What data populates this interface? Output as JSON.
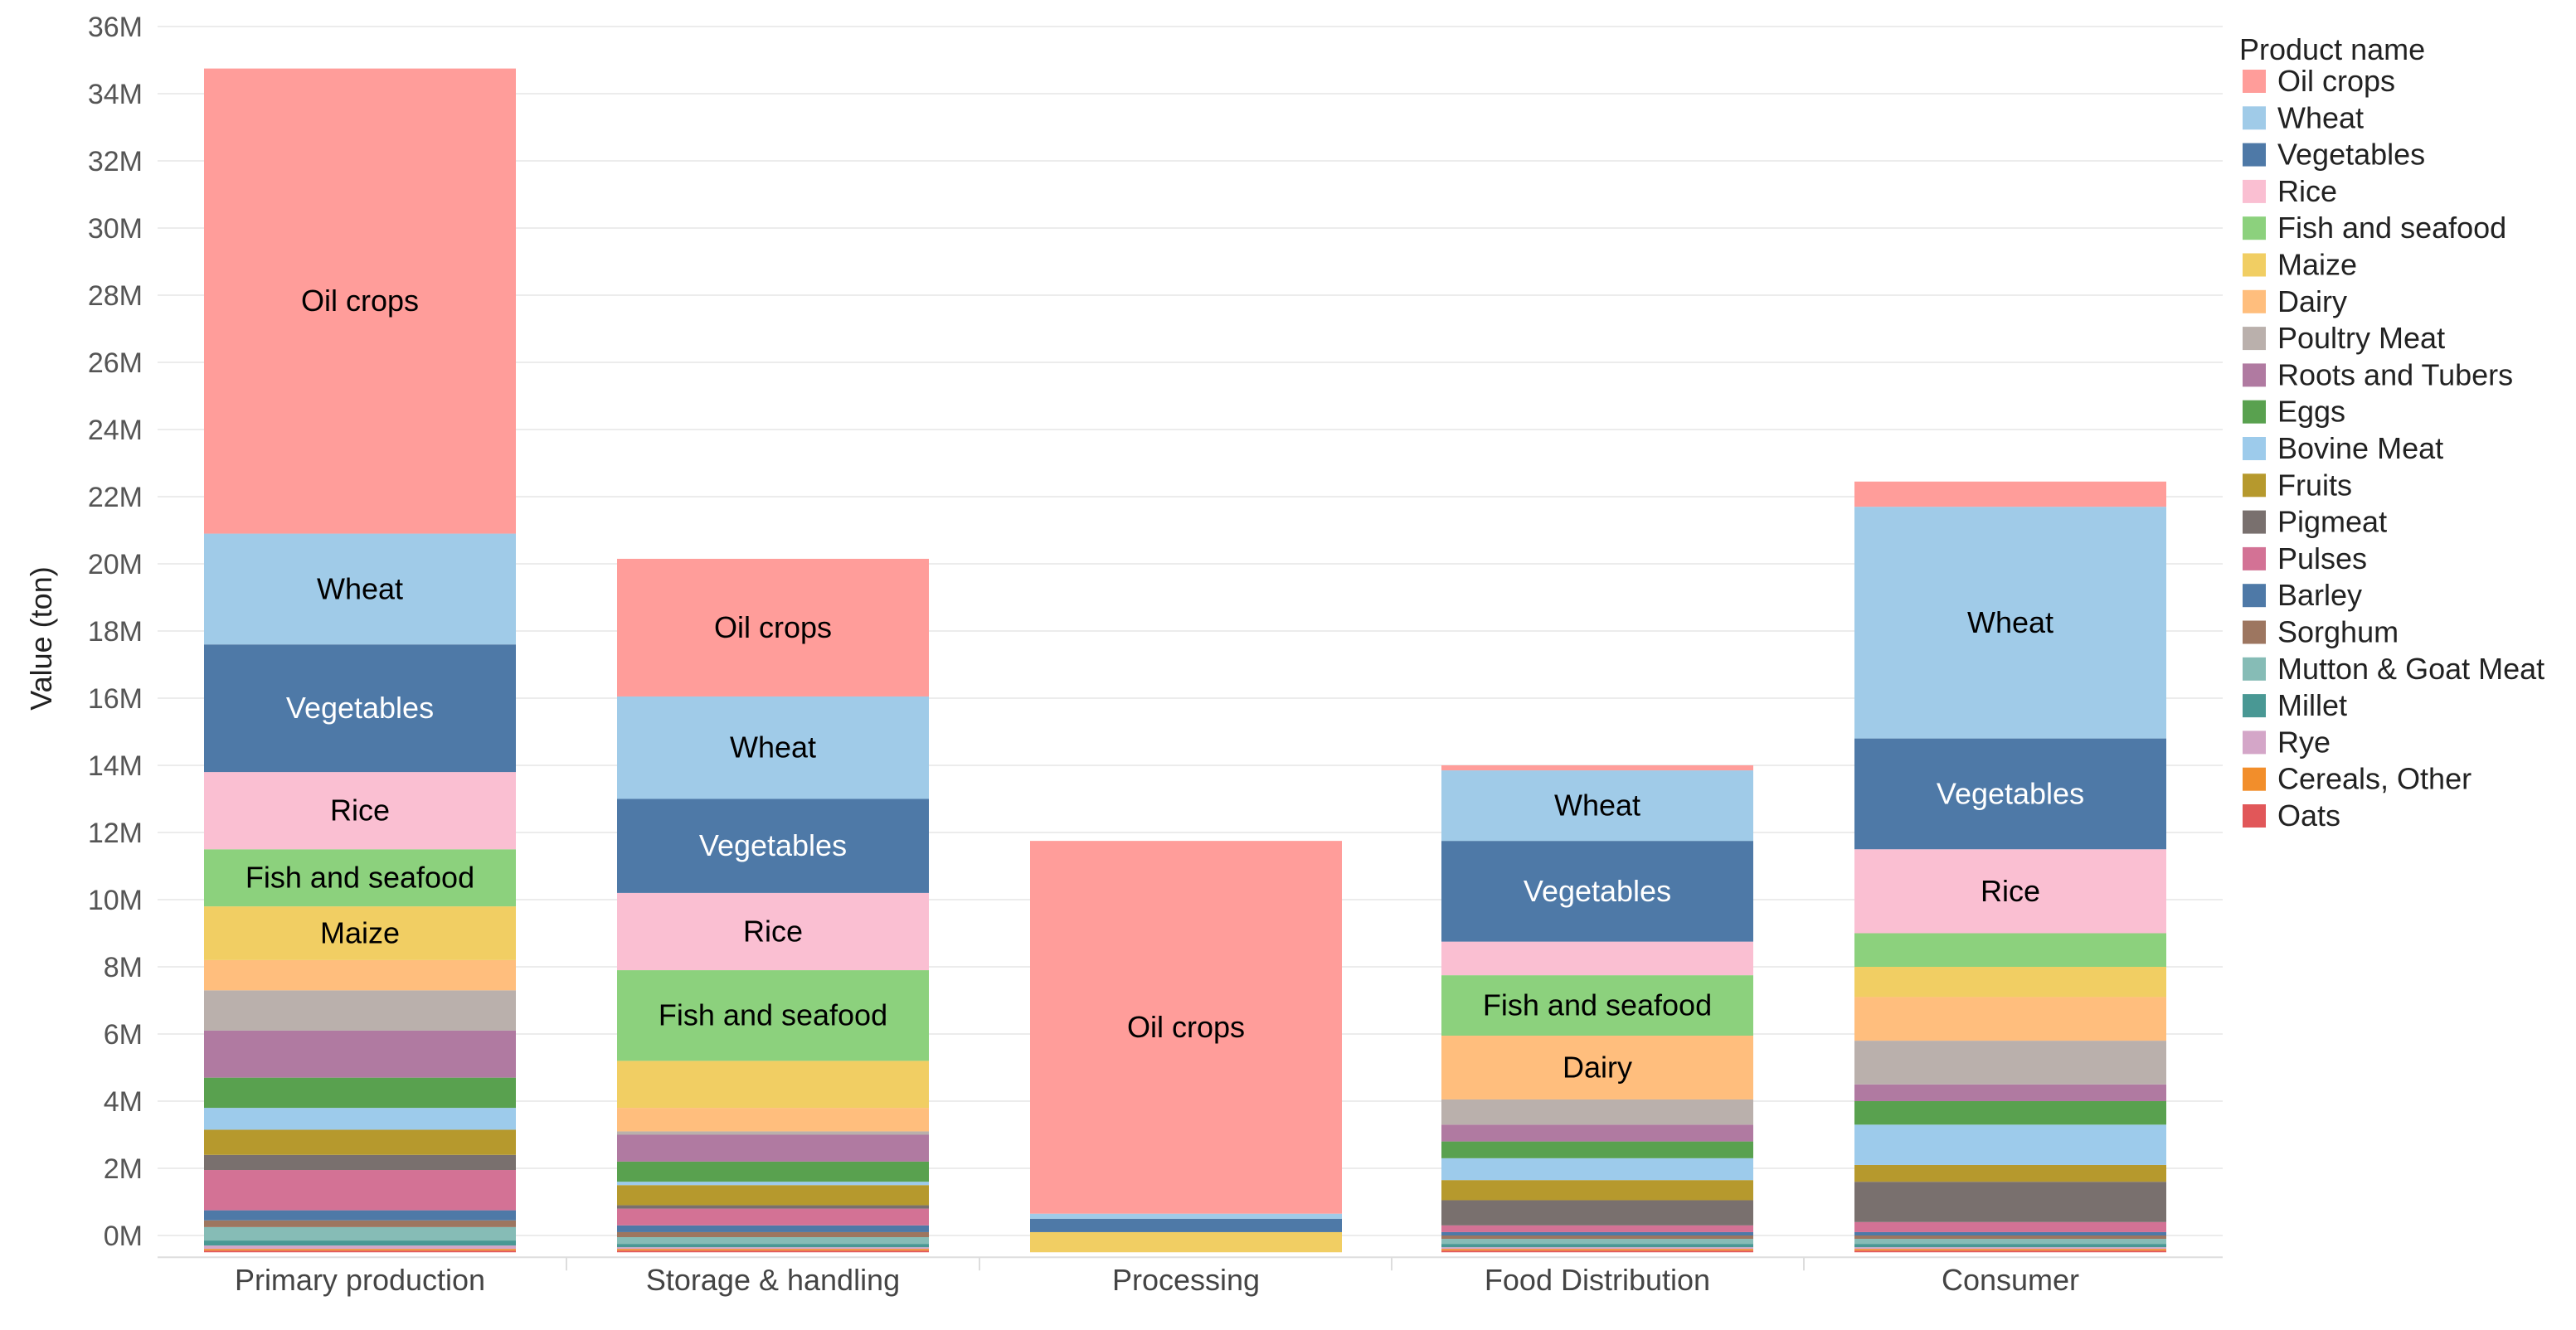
{
  "chart_data": {
    "type": "bar",
    "stacked": true,
    "ylabel": "Value (ton)",
    "xlabel": "",
    "ylim": [
      -500000,
      36000000
    ],
    "yticks": [
      0,
      2000000,
      4000000,
      6000000,
      8000000,
      10000000,
      12000000,
      14000000,
      16000000,
      18000000,
      20000000,
      22000000,
      24000000,
      26000000,
      28000000,
      30000000,
      32000000,
      34000000,
      36000000
    ],
    "ytick_labels": [
      "0M",
      "2M",
      "4M",
      "6M",
      "8M",
      "10M",
      "12M",
      "14M",
      "16M",
      "18M",
      "20M",
      "22M",
      "24M",
      "26M",
      "28M",
      "30M",
      "32M",
      "34M",
      "36M"
    ],
    "categories": [
      "Primary production",
      "Storage & handling",
      "Processing",
      "Food Distribution",
      "Consumer"
    ],
    "legend": {
      "title": "Product name",
      "position": "right",
      "items": [
        "Oil crops",
        "Wheat",
        "Vegetables",
        "Rice",
        "Fish and seafood",
        "Maize",
        "Dairy",
        "Poultry Meat",
        "Roots and Tubers",
        "Eggs",
        "Bovine Meat",
        "Fruits",
        "Pigmeat",
        "Pulses",
        "Barley",
        "Sorghum",
        "Mutton & Goat Meat",
        "Millet",
        "Rye",
        "Cereals, Other",
        "Oats"
      ]
    },
    "colors": {
      "Oil crops": "#ff9d9a",
      "Wheat": "#a0cbe8",
      "Vegetables": "#4e79a7",
      "Rice": "#fabfd2",
      "Fish and seafood": "#8cd17d",
      "Maize": "#f1ce63",
      "Dairy": "#ffbe7d",
      "Poultry Meat": "#bab0ac",
      "Roots and Tubers": "#b07aa1",
      "Eggs": "#59a14f",
      "Bovine Meat": "#9dcbeb",
      "Fruits": "#b6992d",
      "Pigmeat": "#79706e",
      "Pulses": "#d37295",
      "Barley": "#4e79a7",
      "Sorghum": "#9d7660",
      "Mutton & Goat Meat": "#86bcb6",
      "Millet": "#499894",
      "Rye": "#d4a6c8",
      "Cereals, Other": "#f28e2b",
      "Oats": "#e15759"
    },
    "stack_order": [
      "Oats",
      "Cereals, Other",
      "Rye",
      "Millet",
      "Mutton & Goat Meat",
      "Sorghum",
      "Barley",
      "Pulses",
      "Pigmeat",
      "Fruits",
      "Bovine Meat",
      "Eggs",
      "Roots and Tubers",
      "Poultry Meat",
      "Dairy",
      "Maize",
      "Fish and seafood",
      "Rice",
      "Vegetables",
      "Wheat",
      "Oil crops"
    ],
    "series": [
      {
        "name": "Oil crops",
        "values": [
          13850000,
          4100000,
          11100000,
          150000,
          750000
        ]
      },
      {
        "name": "Wheat",
        "values": [
          3300000,
          3050000,
          150000,
          2100000,
          6900000
        ]
      },
      {
        "name": "Vegetables",
        "values": [
          3800000,
          2800000,
          400000,
          3000000,
          3300000
        ]
      },
      {
        "name": "Rice",
        "values": [
          2300000,
          2300000,
          0,
          1000000,
          2500000
        ]
      },
      {
        "name": "Fish and seafood",
        "values": [
          1700000,
          2700000,
          0,
          1800000,
          1000000
        ]
      },
      {
        "name": "Maize",
        "values": [
          1600000,
          1400000,
          600000,
          0,
          900000
        ]
      },
      {
        "name": "Dairy",
        "values": [
          900000,
          700000,
          0,
          1900000,
          1300000
        ]
      },
      {
        "name": "Poultry Meat",
        "values": [
          1200000,
          100000,
          0,
          750000,
          1300000
        ]
      },
      {
        "name": "Roots and Tubers",
        "values": [
          1400000,
          800000,
          0,
          500000,
          500000
        ]
      },
      {
        "name": "Eggs",
        "values": [
          900000,
          600000,
          0,
          500000,
          700000
        ]
      },
      {
        "name": "Bovine Meat",
        "values": [
          650000,
          100000,
          0,
          650000,
          1200000
        ]
      },
      {
        "name": "Fruits",
        "values": [
          750000,
          600000,
          0,
          600000,
          500000
        ]
      },
      {
        "name": "Pigmeat",
        "values": [
          450000,
          100000,
          0,
          750000,
          1200000
        ]
      },
      {
        "name": "Pulses",
        "values": [
          1200000,
          500000,
          0,
          200000,
          300000
        ]
      },
      {
        "name": "Barley",
        "values": [
          300000,
          200000,
          0,
          100000,
          100000
        ]
      },
      {
        "name": "Sorghum",
        "values": [
          200000,
          150000,
          0,
          100000,
          100000
        ]
      },
      {
        "name": "Mutton & Goat Meat",
        "values": [
          400000,
          200000,
          0,
          150000,
          150000
        ]
      },
      {
        "name": "Millet",
        "values": [
          150000,
          100000,
          0,
          100000,
          100000
        ]
      },
      {
        "name": "Rye",
        "values": [
          100000,
          50000,
          0,
          50000,
          50000
        ]
      },
      {
        "name": "Cereals, Other",
        "values": [
          50000,
          50000,
          0,
          50000,
          50000
        ]
      },
      {
        "name": "Oats",
        "values": [
          50000,
          50000,
          0,
          50000,
          50000
        ]
      }
    ],
    "segment_labels": [
      {
        "category": "Primary production",
        "series": "Oil crops",
        "text": "Oil crops",
        "color": "#000000"
      },
      {
        "category": "Primary production",
        "series": "Wheat",
        "text": "Wheat",
        "color": "#000000"
      },
      {
        "category": "Primary production",
        "series": "Vegetables",
        "text": "Vegetables",
        "color": "#ffffff"
      },
      {
        "category": "Primary production",
        "series": "Rice",
        "text": "Rice",
        "color": "#000000"
      },
      {
        "category": "Primary production",
        "series": "Fish and seafood",
        "text": "Fish and seafood",
        "color": "#000000"
      },
      {
        "category": "Primary production",
        "series": "Maize",
        "text": "Maize",
        "color": "#000000"
      },
      {
        "category": "Storage & handling",
        "series": "Oil crops",
        "text": "Oil crops",
        "color": "#000000"
      },
      {
        "category": "Storage & handling",
        "series": "Wheat",
        "text": "Wheat",
        "color": "#000000"
      },
      {
        "category": "Storage & handling",
        "series": "Vegetables",
        "text": "Vegetables",
        "color": "#ffffff"
      },
      {
        "category": "Storage & handling",
        "series": "Rice",
        "text": "Rice",
        "color": "#000000"
      },
      {
        "category": "Storage & handling",
        "series": "Fish and seafood",
        "text": "Fish and seafood",
        "color": "#000000"
      },
      {
        "category": "Processing",
        "series": "Oil crops",
        "text": "Oil crops",
        "color": "#000000"
      },
      {
        "category": "Food Distribution",
        "series": "Wheat",
        "text": "Wheat",
        "color": "#000000"
      },
      {
        "category": "Food Distribution",
        "series": "Vegetables",
        "text": "Vegetables",
        "color": "#ffffff"
      },
      {
        "category": "Food Distribution",
        "series": "Fish and seafood",
        "text": "Fish and seafood",
        "color": "#000000"
      },
      {
        "category": "Food Distribution",
        "series": "Dairy",
        "text": "Dairy",
        "color": "#000000"
      },
      {
        "category": "Consumer",
        "series": "Wheat",
        "text": "Wheat",
        "color": "#000000"
      },
      {
        "category": "Consumer",
        "series": "Vegetables",
        "text": "Vegetables",
        "color": "#ffffff"
      },
      {
        "category": "Consumer",
        "series": "Rice",
        "text": "Rice",
        "color": "#000000"
      }
    ]
  }
}
